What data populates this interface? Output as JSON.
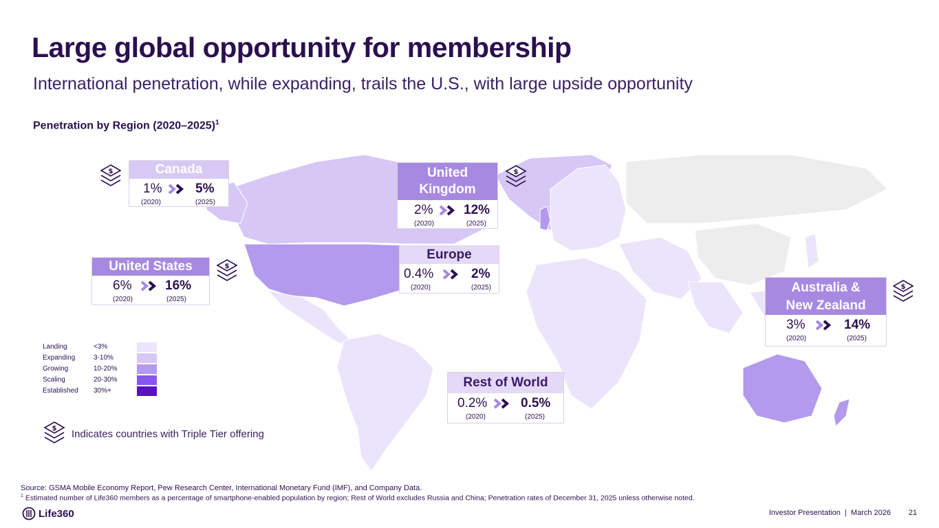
{
  "title": "Large global opportunity for membership",
  "subtitle": "International penetration, while expanding, trails the U.S., with large upside opportunity",
  "section_title": "Penetration by Region (2020–2025)",
  "section_sup": "1",
  "regions": {
    "canada": {
      "name": "Canada",
      "from": "1%",
      "to": "5%",
      "from_year": "(2020)",
      "to_year": "(2025)"
    },
    "uk": {
      "name": "United Kingdom",
      "from": "2%",
      "to": "12%",
      "from_year": "(2020)",
      "to_year": "(2025)"
    },
    "us": {
      "name": "United States",
      "from": "6%",
      "to": "16%",
      "from_year": "(2020)",
      "to_year": "(2025)"
    },
    "europe": {
      "name": "Europe",
      "from": "0.4%",
      "to": "2%",
      "from_year": "(2020)",
      "to_year": "(2025)"
    },
    "anz": {
      "name": "Australia & New Zealand",
      "from": "3%",
      "to": "14%",
      "from_year": "(2020)",
      "to_year": "(2025)"
    },
    "row": {
      "name": "Rest of World",
      "from": "0.2%",
      "to": "0.5%",
      "from_year": "(2020)",
      "to_year": "(2025)"
    }
  },
  "legend": [
    {
      "name": "Landing",
      "range": "<3%",
      "color": "#ece4fb"
    },
    {
      "name": "Expanding",
      "range": "3-10%",
      "color": "#d6c7f5"
    },
    {
      "name": "Growing",
      "range": "10-20%",
      "color": "#b39aec"
    },
    {
      "name": "Scaling",
      "range": "20-30%",
      "color": "#8a55ee"
    },
    {
      "name": "Established",
      "range": "30%+",
      "color": "#5a0fc4"
    }
  ],
  "tier_legend_text": "Indicates countries with Triple Tier offering",
  "source": "Source: GSMA Mobile Economy Report, Pew Research Center, International Monetary Fund (IMF), and Company Data.",
  "footnote_sup": "1",
  "footnote": " Estimated number of Life360 members as a percentage of smartphone-enabled population by region; Rest of World excludes Russia and China; Penetration rates of December 31, 2025 unless otherwise noted.",
  "logo_text": "Life360",
  "footer": "Investor Presentation  |  March 2026",
  "page_number": "21",
  "colors": {
    "landing": "#ece4fb",
    "expanding": "#d6c7f5",
    "growing": "#b39aec",
    "excluded": "#ededed",
    "accent": "#2b0f4f"
  }
}
